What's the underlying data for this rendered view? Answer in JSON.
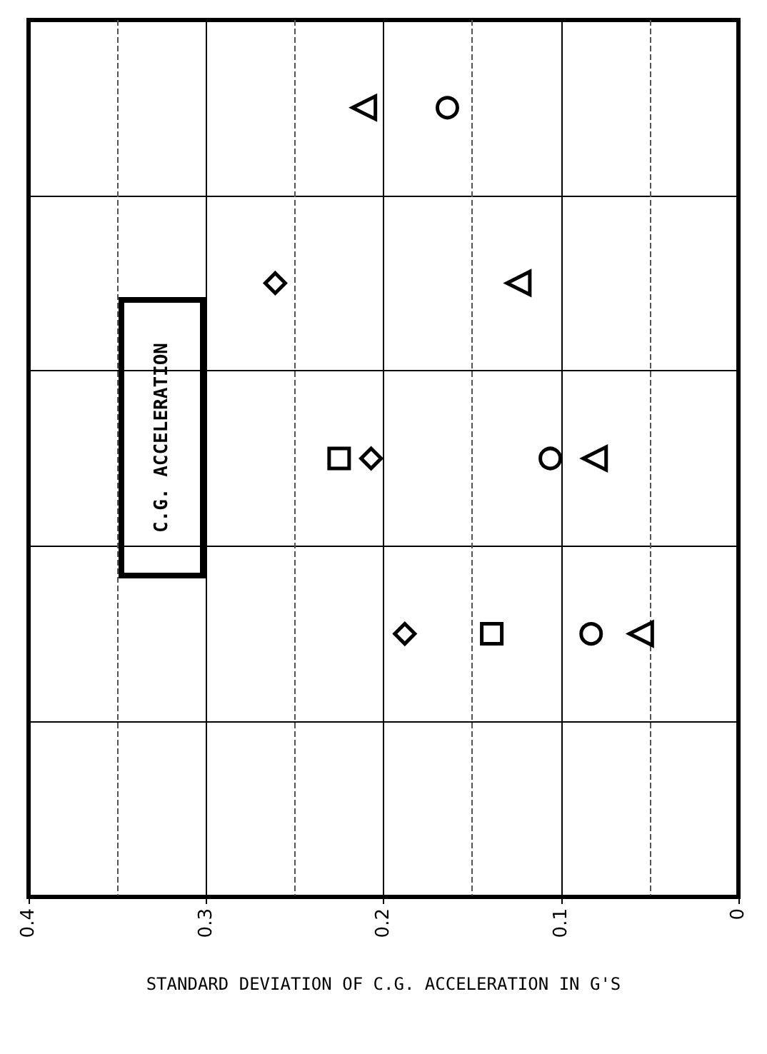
{
  "chart_data": {
    "type": "scatter",
    "orientation": "horizontal",
    "xlabel": "STANDARD DEVIATION OF C.G. ACCELERATION IN G'S",
    "annotations": [
      "C.G. ACCELERATION"
    ],
    "categories": [
      null,
      null,
      null,
      null,
      null
    ],
    "xlim": [
      0.4,
      0
    ],
    "xticks": [
      0.4,
      0.3,
      0.2,
      0.1,
      0
    ],
    "grid": true,
    "series": [
      {
        "marker": "triangle",
        "color": "#000000",
        "values": [
          0.211,
          0.124,
          0.081,
          0.055,
          null
        ]
      },
      {
        "marker": "circle",
        "color": "#000000",
        "values": [
          0.164,
          null,
          0.106,
          0.083,
          null
        ]
      },
      {
        "marker": "diamond",
        "color": "#000000",
        "values": [
          null,
          0.261,
          0.207,
          null,
          null
        ]
      },
      {
        "marker": "square",
        "color": "#000000",
        "values": [
          null,
          null,
          0.225,
          0.139,
          null
        ]
      },
      {
        "marker": "diamond",
        "color": "#000000",
        "values": [
          null,
          null,
          null,
          0.188,
          null
        ]
      }
    ]
  }
}
